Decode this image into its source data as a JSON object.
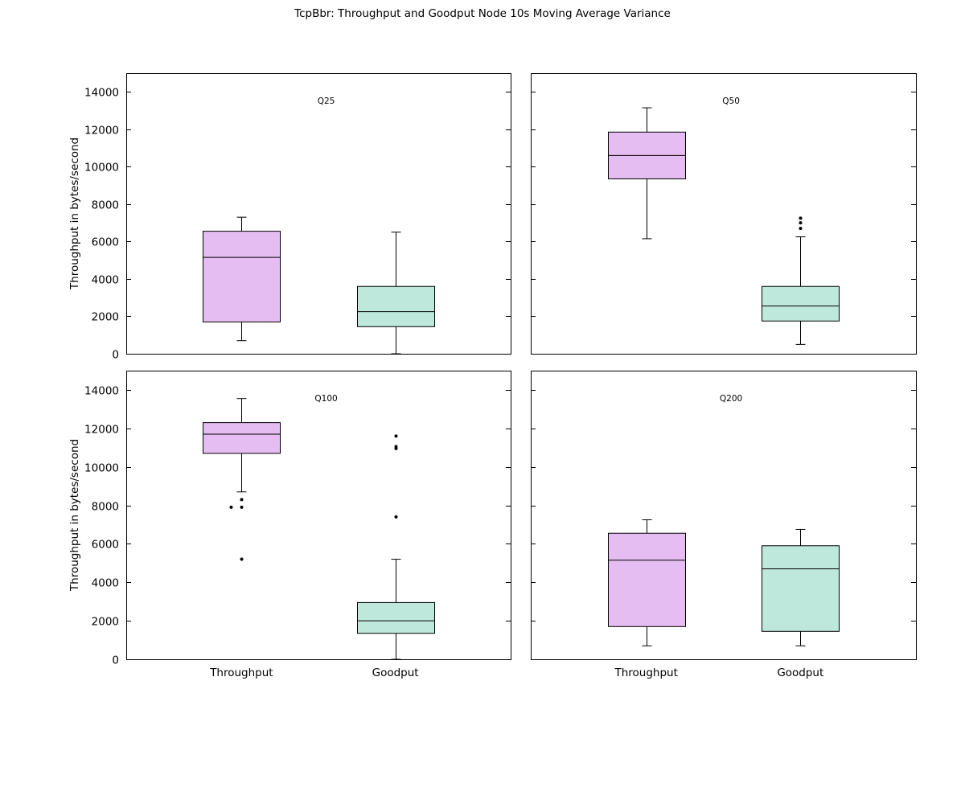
{
  "title": "TcpBbr: Throughput and Goodput Node 10s Moving Average Variance",
  "colors": {
    "throughput_fill": "#e6bdf2",
    "goodput_fill": "#bfe8dd",
    "stroke": "#000000"
  },
  "chart_data": [
    {
      "type": "boxplot",
      "title": "Q25",
      "ylabel": "Throughput in bytes/second",
      "ylim": [
        0,
        15000
      ],
      "yticks": [
        0,
        2000,
        4000,
        6000,
        8000,
        10000,
        12000,
        14000
      ],
      "ytick_labels": [
        "0",
        "2000",
        "4000",
        "6000",
        "8000",
        "10000",
        "12000",
        "14000"
      ],
      "categories": [
        "Throughput",
        "Goodput"
      ],
      "show_xlabels": false,
      "series": [
        {
          "name": "Throughput",
          "whisker_low": 700,
          "q1": 1700,
          "median": 5150,
          "q3": 6550,
          "whisker_high": 7300,
          "outliers": []
        },
        {
          "name": "Goodput",
          "whisker_low": 0,
          "q1": 1450,
          "median": 2250,
          "q3": 3600,
          "whisker_high": 6500,
          "outliers": []
        }
      ]
    },
    {
      "type": "boxplot",
      "title": "Q50",
      "ylabel": "",
      "ylim": [
        0,
        15000
      ],
      "yticks": [
        0,
        2000,
        4000,
        6000,
        8000,
        10000,
        12000,
        14000
      ],
      "ytick_labels": [],
      "categories": [
        "Throughput",
        "Goodput"
      ],
      "show_xlabels": false,
      "series": [
        {
          "name": "Throughput",
          "whisker_low": 6150,
          "q1": 9350,
          "median": 10600,
          "q3": 11850,
          "whisker_high": 13150,
          "outliers": []
        },
        {
          "name": "Goodput",
          "whisker_low": 500,
          "q1": 1750,
          "median": 2550,
          "q3": 3600,
          "whisker_high": 6250,
          "outliers": [
            6700,
            7000,
            7250
          ]
        }
      ]
    },
    {
      "type": "boxplot",
      "title": "Q100",
      "ylabel": "Throughput in bytes/second",
      "ylim": [
        0,
        15000
      ],
      "yticks": [
        0,
        2000,
        4000,
        6000,
        8000,
        10000,
        12000,
        14000
      ],
      "ytick_labels": [
        "0",
        "2000",
        "4000",
        "6000",
        "8000",
        "10000",
        "12000",
        "14000"
      ],
      "categories": [
        "Throughput",
        "Goodput"
      ],
      "show_xlabels": true,
      "series": [
        {
          "name": "Throughput",
          "whisker_low": 8700,
          "q1": 10700,
          "median": 11700,
          "q3": 12300,
          "whisker_high": 13550,
          "outliers": [
            8300,
            7900,
            7900,
            5200
          ]
        },
        {
          "name": "Goodput",
          "whisker_low": 0,
          "q1": 1350,
          "median": 2000,
          "q3": 2950,
          "whisker_high": 5200,
          "outliers": [
            7400,
            10950,
            11050,
            11600
          ]
        }
      ]
    },
    {
      "type": "boxplot",
      "title": "Q200",
      "ylabel": "",
      "ylim": [
        0,
        15000
      ],
      "yticks": [
        0,
        2000,
        4000,
        6000,
        8000,
        10000,
        12000,
        14000
      ],
      "ytick_labels": [],
      "categories": [
        "Throughput",
        "Goodput"
      ],
      "show_xlabels": true,
      "series": [
        {
          "name": "Throughput",
          "whisker_low": 700,
          "q1": 1700,
          "median": 5150,
          "q3": 6550,
          "whisker_high": 7250,
          "outliers": []
        },
        {
          "name": "Goodput",
          "whisker_low": 700,
          "q1": 1450,
          "median": 4700,
          "q3": 5900,
          "whisker_high": 6750,
          "outliers": []
        }
      ]
    }
  ]
}
